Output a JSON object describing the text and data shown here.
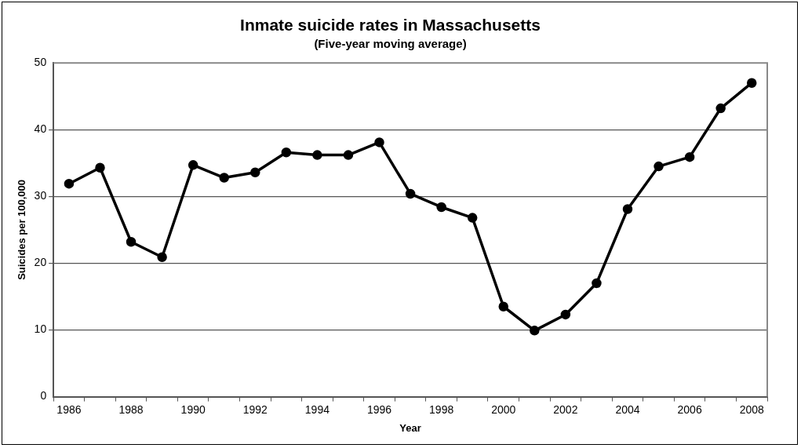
{
  "chart_data": {
    "type": "line",
    "title": "Inmate suicide rates in Massachusetts",
    "subtitle": "(Five-year moving average)",
    "xlabel": "Year",
    "ylabel": "Suicides per 100,000",
    "categories": [
      "1986",
      null,
      "1988",
      null,
      "1990",
      null,
      "1992",
      null,
      "1994",
      null,
      "1996",
      null,
      "1998",
      null,
      "2000",
      null,
      "2002",
      null,
      "2004",
      null,
      "2006",
      null,
      "2008"
    ],
    "series": [
      {
        "color": "#000000",
        "values": [
          31.9,
          34.3,
          23.2,
          20.9,
          34.7,
          32.8,
          33.6,
          36.6,
          36.2,
          36.2,
          38.1,
          30.4,
          28.4,
          26.8,
          13.5,
          9.9,
          12.3,
          17.0,
          28.1,
          34.5,
          35.9,
          43.2,
          47.0
        ]
      }
    ],
    "ylim": [
      0,
      50
    ],
    "yticks": [
      0,
      10,
      20,
      30,
      40,
      50
    ],
    "grid": "y",
    "legend": false,
    "marker": "circle",
    "line_style": "solid"
  }
}
